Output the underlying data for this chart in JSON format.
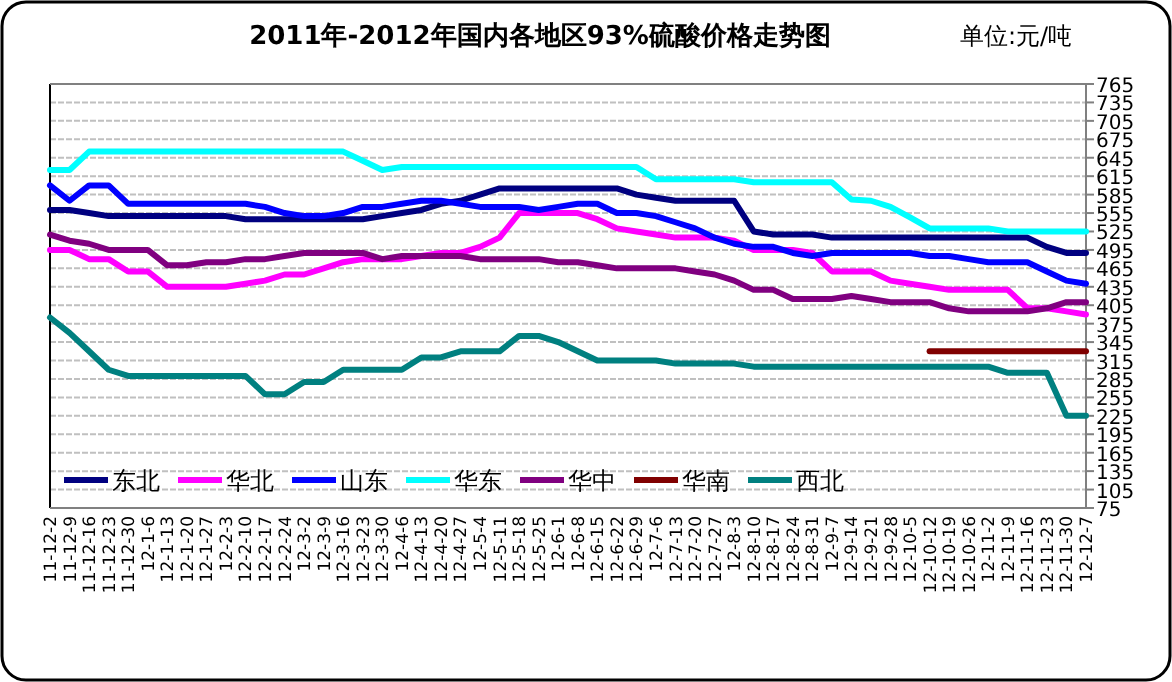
{
  "chart_data": {
    "type": "line",
    "title": "2011年-2012年国内各地区93%硫酸价格走势图",
    "annotations": [
      "单位:元/吨"
    ],
    "categories": [
      "11-12-2",
      "11-12-9",
      "11-12-16",
      "11-12-23",
      "11-12-30",
      "12-1-6",
      "12-1-13",
      "12-1-20",
      "12-1-27",
      "12-2-3",
      "12-2-10",
      "12-2-17",
      "12-2-24",
      "12-3-2",
      "12-3-9",
      "12-3-16",
      "12-3-23",
      "12-3-30",
      "12-4-6",
      "12-4-13",
      "12-4-20",
      "12-4-27",
      "12-5-4",
      "12-5-11",
      "12-5-18",
      "12-5-25",
      "12-6-1",
      "12-6-8",
      "12-6-15",
      "12-6-22",
      "12-6-29",
      "12-7-6",
      "12-7-13",
      "12-7-20",
      "12-7-27",
      "12-8-3",
      "12-8-10",
      "12-8-17",
      "12-8-24",
      "12-8-31",
      "12-9-7",
      "12-9-14",
      "12-9-21",
      "12-9-28",
      "12-10-5",
      "12-10-12",
      "12-10-19",
      "12-10-26",
      "12-11-2",
      "12-11-9",
      "12-11-16",
      "12-11-23",
      "12-11-30",
      "12-12-7"
    ],
    "series": [
      {
        "name": "东北",
        "color": "#000080",
        "values": [
          560,
          560,
          555,
          550,
          550,
          550,
          550,
          550,
          550,
          550,
          545,
          545,
          545,
          545,
          545,
          545,
          545,
          550,
          555,
          560,
          570,
          575,
          585,
          595,
          595,
          595,
          595,
          595,
          595,
          595,
          585,
          580,
          575,
          575,
          575,
          575,
          525,
          520,
          520,
          520,
          515,
          515,
          515,
          515,
          515,
          515,
          515,
          515,
          515,
          515,
          515,
          500,
          490,
          490
        ]
      },
      {
        "name": "华北",
        "color": "#ff00ff",
        "values": [
          495,
          495,
          480,
          480,
          460,
          460,
          435,
          435,
          435,
          435,
          440,
          445,
          455,
          455,
          465,
          475,
          480,
          480,
          480,
          485,
          490,
          490,
          500,
          515,
          555,
          555,
          555,
          555,
          545,
          530,
          525,
          520,
          515,
          515,
          515,
          510,
          495,
          495,
          495,
          490,
          460,
          460,
          460,
          445,
          440,
          435,
          430,
          430,
          430,
          430,
          400,
          400,
          395,
          390
        ]
      },
      {
        "name": "山东",
        "color": "#0000ff",
        "values": [
          600,
          575,
          600,
          600,
          570,
          570,
          570,
          570,
          570,
          570,
          570,
          565,
          555,
          550,
          550,
          555,
          565,
          565,
          570,
          575,
          575,
          570,
          565,
          565,
          565,
          560,
          565,
          570,
          570,
          555,
          555,
          550,
          540,
          530,
          515,
          505,
          500,
          500,
          490,
          485,
          490,
          490,
          490,
          490,
          490,
          485,
          485,
          480,
          475,
          475,
          475,
          460,
          445,
          440
        ]
      },
      {
        "name": "华东",
        "color": "#00ffff",
        "values": [
          625,
          625,
          655,
          655,
          655,
          655,
          655,
          655,
          655,
          655,
          655,
          655,
          655,
          655,
          655,
          655,
          640,
          625,
          630,
          630,
          630,
          630,
          630,
          630,
          630,
          630,
          630,
          630,
          630,
          630,
          630,
          610,
          610,
          610,
          610,
          610,
          605,
          605,
          605,
          605,
          605,
          577,
          575,
          565,
          548,
          530,
          530,
          530,
          530,
          525,
          525,
          525,
          525,
          525
        ]
      },
      {
        "name": "华中",
        "color": "#800080",
        "values": [
          520,
          510,
          505,
          495,
          495,
          495,
          470,
          470,
          475,
          475,
          480,
          480,
          485,
          490,
          490,
          490,
          490,
          480,
          485,
          485,
          485,
          485,
          480,
          480,
          480,
          480,
          475,
          475,
          470,
          465,
          465,
          465,
          465,
          460,
          455,
          445,
          430,
          430,
          415,
          415,
          415,
          420,
          415,
          410,
          410,
          410,
          400,
          395,
          395,
          395,
          395,
          400,
          410,
          410
        ]
      },
      {
        "name": "华南",
        "color": "#800000",
        "values": [
          null,
          null,
          null,
          null,
          null,
          null,
          null,
          null,
          null,
          null,
          null,
          null,
          null,
          null,
          null,
          null,
          null,
          null,
          null,
          null,
          null,
          null,
          null,
          null,
          null,
          null,
          null,
          null,
          null,
          null,
          null,
          null,
          null,
          null,
          null,
          null,
          null,
          null,
          null,
          null,
          null,
          null,
          null,
          null,
          null,
          330,
          330,
          330,
          330,
          330,
          330,
          330,
          330,
          330
        ]
      },
      {
        "name": "西北",
        "color": "#008080",
        "values": [
          385,
          360,
          330,
          300,
          290,
          290,
          290,
          290,
          290,
          290,
          290,
          260,
          260,
          280,
          280,
          300,
          300,
          300,
          300,
          320,
          320,
          330,
          330,
          330,
          355,
          355,
          345,
          330,
          315,
          315,
          315,
          315,
          310,
          310,
          310,
          310,
          305,
          305,
          305,
          305,
          305,
          305,
          305,
          305,
          305,
          305,
          305,
          305,
          305,
          295,
          295,
          295,
          225,
          225
        ]
      }
    ],
    "ylim": [
      75,
      765
    ],
    "yticks": [
      75,
      105,
      135,
      165,
      195,
      225,
      255,
      285,
      315,
      345,
      375,
      405,
      435,
      465,
      495,
      525,
      555,
      585,
      615,
      645,
      675,
      705,
      735,
      765
    ],
    "grid": "y",
    "legend": "bottom"
  }
}
